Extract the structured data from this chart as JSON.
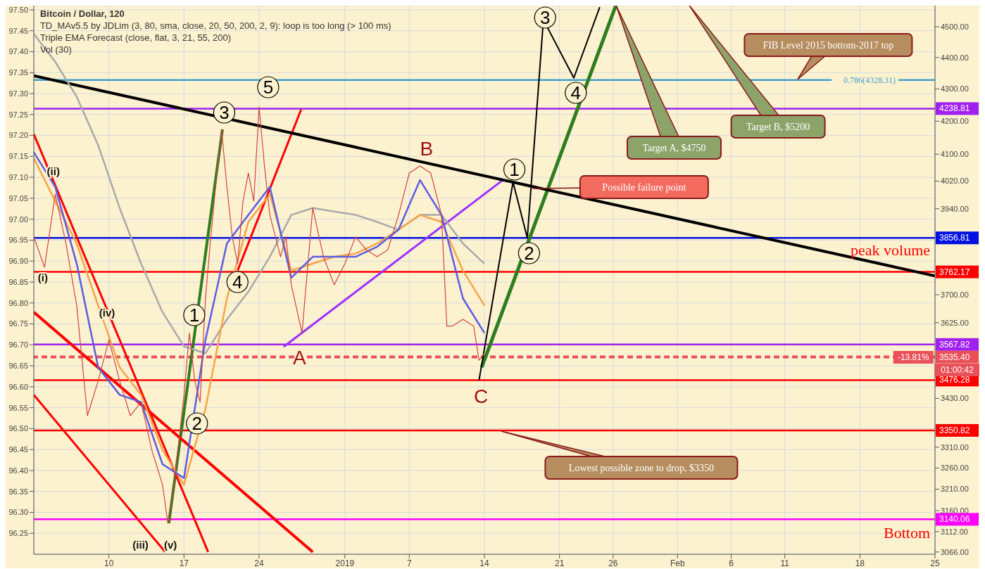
{
  "chart_data": {
    "type": "line",
    "title": "Bitcoin / Dollar, 120",
    "xlim": [
      "2018-12-03",
      "2019-02-25"
    ],
    "xticks": [
      {
        "value": "2018-12-10",
        "label": "10"
      },
      {
        "value": "2018-12-17",
        "label": "17"
      },
      {
        "value": "2018-12-24",
        "label": "24"
      },
      {
        "value": "2019-01-01",
        "label": "2019"
      },
      {
        "value": "2019-01-07",
        "label": "7"
      },
      {
        "value": "2019-01-14",
        "label": "14"
      },
      {
        "value": "2019-01-21",
        "label": "21"
      },
      {
        "value": "2019-01-26",
        "label": "26"
      },
      {
        "value": "2019-02-01",
        "label": "Feb"
      },
      {
        "value": "2019-02-06",
        "label": "6"
      },
      {
        "value": "2019-02-11",
        "label": "11"
      },
      {
        "value": "2019-02-18",
        "label": "18"
      },
      {
        "value": "2019-02-25",
        "label": "25"
      }
    ],
    "ylim": [
      96.2,
      97.51
    ],
    "yticks": [
      {
        "value": 96.25,
        "label": "96.25"
      },
      {
        "value": 96.3,
        "label": "96.30"
      },
      {
        "value": 96.35,
        "label": "96.35"
      },
      {
        "value": 96.4,
        "label": "96.40"
      },
      {
        "value": 96.45,
        "label": "96.45"
      },
      {
        "value": 96.5,
        "label": "96.50"
      },
      {
        "value": 96.55,
        "label": "96.55"
      },
      {
        "value": 96.6,
        "label": "96.60"
      },
      {
        "value": 96.65,
        "label": "96.65"
      },
      {
        "value": 96.7,
        "label": "96.70"
      },
      {
        "value": 96.75,
        "label": "96.75"
      },
      {
        "value": 96.8,
        "label": "96.80"
      },
      {
        "value": 96.85,
        "label": "96.85"
      },
      {
        "value": 96.9,
        "label": "96.90"
      },
      {
        "value": 96.95,
        "label": "96.95"
      },
      {
        "value": 97.0,
        "label": "97.00"
      },
      {
        "value": 97.05,
        "label": "97.05"
      },
      {
        "value": 97.1,
        "label": "97.10"
      },
      {
        "value": 97.15,
        "label": "97.15"
      },
      {
        "value": 97.2,
        "label": "97.20"
      },
      {
        "value": 97.25,
        "label": "97.25"
      },
      {
        "value": 97.3,
        "label": "97.30"
      },
      {
        "value": 97.35,
        "label": "97.35"
      },
      {
        "value": 97.4,
        "label": "97.40"
      },
      {
        "value": 97.45,
        "label": "97.45"
      },
      {
        "value": 97.5,
        "label": "97.50"
      }
    ],
    "y2lim": [
      3061,
      4570
    ],
    "y2ticks": [
      {
        "value": 3066,
        "label": "3066.00"
      },
      {
        "value": 3112,
        "label": "3112.00"
      },
      {
        "value": 3160,
        "label": "3160.00"
      },
      {
        "value": 3210,
        "label": "3210.00"
      },
      {
        "value": 3260,
        "label": "3260.00"
      },
      {
        "value": 3310,
        "label": "3310.00"
      },
      {
        "value": 3430,
        "label": "3430.00"
      },
      {
        "value": 3625,
        "label": "3625.00"
      },
      {
        "value": 3700,
        "label": "3700.00"
      },
      {
        "value": 3940,
        "label": "3940.00"
      },
      {
        "value": 4020,
        "label": "4020.00"
      },
      {
        "value": 4100,
        "label": "4100.00"
      },
      {
        "value": 4200,
        "label": "4200.00"
      },
      {
        "value": 4300,
        "label": "4300.00"
      },
      {
        "value": 4400,
        "label": "4400.00"
      },
      {
        "value": 4500,
        "label": "4500.00"
      }
    ],
    "log": "y2",
    "grid": true,
    "marker": "none",
    "series": [
      {
        "color": "#d0453f",
        "axis": "y2",
        "x": [
          "2018-12-03",
          "2018-12-04",
          "2018-12-05",
          "2018-12-06",
          "2018-12-07",
          "2018-12-08",
          "2018-12-09",
          "2018-12-10",
          "2018-12-11",
          "2018-12-12",
          "2018-12-13",
          "2018-12-14",
          "2018-12-15",
          "2018-12-15T12:00",
          "2018-12-16",
          "2018-12-17",
          "2018-12-17T12:00",
          "2018-12-18",
          "2018-12-18T12:00",
          "2018-12-19",
          "2018-12-19T12:00",
          "2018-12-20",
          "2018-12-20T12:00",
          "2018-12-21",
          "2018-12-21T12:00",
          "2018-12-22",
          "2018-12-22T12:00",
          "2018-12-23",
          "2018-12-23T12:00",
          "2018-12-24",
          "2018-12-24T12:00",
          "2018-12-25",
          "2018-12-26",
          "2018-12-26T12:00",
          "2018-12-27",
          "2018-12-28",
          "2018-12-29",
          "2018-12-30",
          "2018-12-31",
          "2019-01-01",
          "2019-01-02",
          "2019-01-03",
          "2019-01-04",
          "2019-01-05",
          "2019-01-06",
          "2019-01-07",
          "2019-01-08",
          "2019-01-09",
          "2019-01-10",
          "2019-01-10T12:00",
          "2019-01-11",
          "2019-01-12",
          "2019-01-13",
          "2019-01-13T12:00",
          "2019-01-14"
        ],
        "values": [
          3860,
          3775,
          3982,
          3841,
          3671,
          3387,
          3474,
          3580,
          3474,
          3387,
          3421,
          3303,
          3220,
          3131,
          3204,
          3439,
          3598,
          3474,
          3421,
          3690,
          3860,
          4023,
          4175,
          4003,
          3860,
          3785,
          3962,
          4044,
          3962,
          4244,
          4065,
          3922,
          3804,
          3860,
          3727,
          3598,
          3942,
          3804,
          3727,
          3785,
          3860,
          3823,
          3804,
          3823,
          3922,
          4044,
          4065,
          4044,
          3922,
          3616,
          3616,
          3634,
          3616,
          3527,
          3545
        ]
      },
      {
        "color": "#5b5ce6",
        "axis": "y2",
        "x": [
          "2018-12-03",
          "2018-12-05",
          "2018-12-07",
          "2018-12-09",
          "2018-12-11",
          "2018-12-13",
          "2018-12-15",
          "2018-12-17",
          "2018-12-19",
          "2018-12-21",
          "2018-12-23",
          "2018-12-25",
          "2018-12-27",
          "2018-12-29",
          "2018-12-31",
          "2019-01-02",
          "2019-01-04",
          "2019-01-06",
          "2019-01-08",
          "2019-01-10",
          "2019-01-12",
          "2019-01-14"
        ],
        "values": [
          4106,
          4003,
          3785,
          3509,
          3439,
          3421,
          3269,
          3236,
          3580,
          3841,
          3922,
          4003,
          3746,
          3804,
          3804,
          3804,
          3832,
          3880,
          4023,
          3922,
          3690,
          3598
        ]
      },
      {
        "color": "#f7a448",
        "axis": "y2",
        "x": [
          "2018-12-03",
          "2018-12-05",
          "2018-12-07",
          "2018-12-09",
          "2018-12-11",
          "2018-12-13",
          "2018-12-15",
          "2018-12-17",
          "2018-12-19",
          "2018-12-21",
          "2018-12-23",
          "2018-12-25",
          "2018-12-27",
          "2018-12-29",
          "2018-12-31",
          "2019-01-02",
          "2019-01-04",
          "2019-01-06",
          "2019-01-08",
          "2019-01-10",
          "2019-01-12",
          "2019-01-14"
        ],
        "values": [
          4088,
          3962,
          3841,
          3671,
          3509,
          3439,
          3303,
          3220,
          3404,
          3690,
          3902,
          3982,
          3766,
          3785,
          3804,
          3813,
          3841,
          3880,
          3922,
          3902,
          3766,
          3671
        ]
      },
      {
        "color": "#a9a9a9",
        "axis": "y2",
        "x": [
          "2018-12-03",
          "2018-12-05",
          "2018-12-07",
          "2018-12-09",
          "2018-12-11",
          "2018-12-13",
          "2018-12-15",
          "2018-12-17",
          "2018-12-19",
          "2018-12-21",
          "2018-12-23",
          "2018-12-25",
          "2018-12-27",
          "2018-12-29",
          "2018-12-31",
          "2019-01-02",
          "2019-01-04",
          "2019-01-06",
          "2019-01-08",
          "2019-01-10",
          "2019-01-12",
          "2019-01-14"
        ],
        "values": [
          4477,
          4386,
          4276,
          4127,
          3942,
          3785,
          3653,
          3563,
          3545,
          3634,
          3708,
          3804,
          3922,
          3942,
          3932,
          3922,
          3902,
          3880,
          3922,
          3922,
          3841,
          3785
        ]
      },
      {
        "color": "#000000",
        "axis": "y2",
        "x": [
          "2018-12-03",
          "2019-02-25"
        ],
        "values": [
          4342,
          3751
        ]
      },
      {
        "color": "#9b30ff",
        "axis": "y2",
        "x": [
          "2018-12-26T07:00",
          "2019-01-15T17:00"
        ],
        "values": [
          3562,
          4023
        ]
      },
      {
        "color": "#ff0000",
        "axis": "y2",
        "x": [
          "2018-12-03",
          "2018-12-19T06:00"
        ],
        "values": [
          4161,
          3066
        ]
      },
      {
        "color": "#ff0000",
        "axis": "y2",
        "x": [
          "2018-12-03",
          "2018-12-29T00:00"
        ],
        "values": [
          3653,
          3066
        ]
      },
      {
        "color": "#ff0000",
        "axis": "y2",
        "x": [
          "2018-12-03",
          "2018-12-15T06:00"
        ],
        "values": [
          3439,
          3066
        ]
      },
      {
        "color": "#ff0000",
        "axis": "y2",
        "x": [
          "2018-12-22T00:00",
          "2018-12-27T22:00"
        ],
        "values": [
          3766,
          4236
        ]
      },
      {
        "color": "#2e7d1e",
        "axis": "y2",
        "x": [
          "2018-12-15T14:00",
          "2018-12-20T14:00"
        ],
        "values": [
          3131,
          4175
        ]
      },
      {
        "color": "#000000",
        "axis": "y2",
        "x": [
          "2019-01-13T12:00",
          "2019-01-16T16:00",
          "2019-01-18T00:00",
          "2019-01-19T12:00",
          "2019-01-22T08:00",
          "2019-01-24T18:00"
        ],
        "values": [
          3476,
          4017,
          3857,
          4523,
          4335,
          4565
        ]
      },
      {
        "color": "#2e7d1e",
        "axis": "y2",
        "x": [
          "2019-01-13T18:00",
          "2019-01-26T06:00"
        ],
        "values": [
          3509,
          4570
        ]
      }
    ],
    "ref_lines": [
      {
        "axis": "y2",
        "value": 4328.31,
        "label": "0.786(4328.31)",
        "color": "#3ea0d0"
      },
      {
        "axis": "y2",
        "value": 4238.81,
        "label": "4238.81",
        "color": "#a020f0"
      },
      {
        "axis": "y2",
        "value": 3856.81,
        "label": "3856.81",
        "color": "#0010e0"
      },
      {
        "axis": "y2",
        "value": 3762.17,
        "label": "3762.17",
        "color": "#ff0000"
      },
      {
        "axis": "y2",
        "value": 3567.82,
        "label": "3567.82",
        "color": "#a020f0"
      },
      {
        "axis": "y2",
        "value": 3535.4,
        "label": "3535.40",
        "color": "#e8505a",
        "line_style": "dashed"
      },
      {
        "axis": "y2",
        "value": 3476.28,
        "label": "3476.28",
        "color": "#ff0000"
      },
      {
        "axis": "y2",
        "value": 3350.82,
        "label": "3350.82",
        "color": "#ff0000"
      },
      {
        "axis": "y2",
        "value": 3140.06,
        "label": "3140.06",
        "color": "#ff00ff"
      }
    ],
    "annotations": [
      "TD_MAv5.5 by JDLim (3, 80, sma, close, 20, 50, 200, 2, 9): loop is too long (> 100 ms)",
      "Triple EMA Forecast (close, flat, 3, 21, 55, 200)",
      "Vol (30)",
      "Target A, $4750",
      "Target B, $5200",
      "peak volume",
      "Bottom",
      "-13.81%",
      "01:00:42",
      "FIB Level 2015 bottom-2017 top",
      "Possible failure point",
      "Lowest possible zone to drop, $3350",
      "1",
      "2",
      "3",
      "4",
      "5",
      "1",
      "2",
      "3",
      "4",
      "A",
      "B",
      "C",
      "(i)",
      "(ii)",
      "(iv)",
      "(iii)",
      "(v)"
    ]
  }
}
